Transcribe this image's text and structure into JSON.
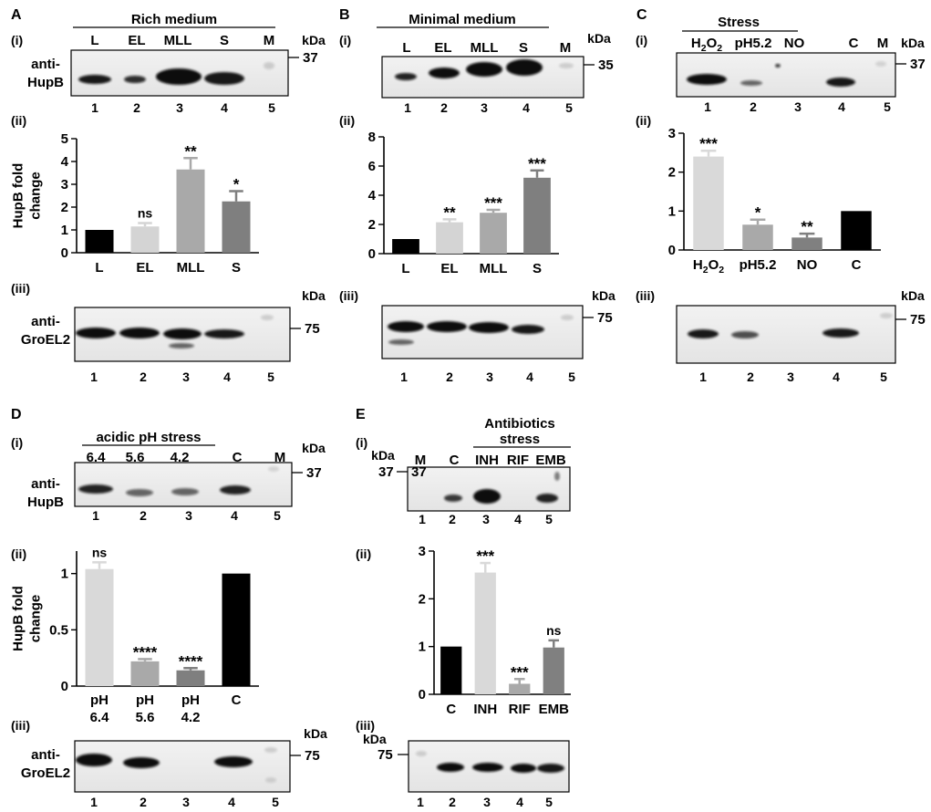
{
  "panels": {
    "A": {
      "letter": "A",
      "i": "(i)",
      "ii": "(ii)",
      "iii": "(iii)",
      "condition": "Rich medium",
      "kda": "kDa",
      "blot1": {
        "antibody": [
          "anti-",
          "HupB"
        ],
        "marker": "37",
        "lanes": [
          "L",
          "EL",
          "MLL",
          "S",
          "M"
        ],
        "numbers": [
          "1",
          "2",
          "3",
          "4",
          "5"
        ]
      },
      "blot2": {
        "antibody": [
          "anti-",
          "GroEL2"
        ],
        "marker": "75",
        "numbers": [
          "1",
          "2",
          "3",
          "4",
          "5"
        ]
      }
    },
    "B": {
      "letter": "B",
      "i": "(i)",
      "ii": "(ii)",
      "iii": "(iii)",
      "condition": "Minimal medium",
      "kda": "kDa",
      "blot1": {
        "marker": "35",
        "lanes": [
          "L",
          "EL",
          "MLL",
          "S",
          "M"
        ],
        "numbers": [
          "1",
          "2",
          "3",
          "4",
          "5"
        ]
      },
      "blot2": {
        "marker": "75",
        "numbers": [
          "1",
          "2",
          "3",
          "4",
          "5"
        ]
      }
    },
    "C": {
      "letter": "C",
      "i": "(i)",
      "ii": "(ii)",
      "iii": "(iii)",
      "condition": "Stress",
      "kda": "kDa",
      "blot1": {
        "marker": "37",
        "lanes": [
          "H2O2",
          "pH5.2",
          "NO",
          "C",
          "M"
        ],
        "numbers": [
          "1",
          "2",
          "3",
          "4",
          "5"
        ]
      },
      "blot2": {
        "marker": "75",
        "numbers": [
          "1",
          "2",
          "3",
          "4",
          "5"
        ]
      }
    },
    "D": {
      "letter": "D",
      "i": "(i)",
      "ii": "(ii)",
      "iii": "(iii)",
      "condition": "acidic pH stress",
      "kda": "kDa",
      "blot1": {
        "antibody": [
          "anti-",
          "HupB"
        ],
        "marker": "37",
        "lanes": [
          "6.4",
          "5.6",
          "4.2",
          "C",
          "M"
        ],
        "numbers": [
          "1",
          "2",
          "3",
          "4",
          "5"
        ]
      },
      "blot2": {
        "antibody": [
          "anti-",
          "GroEL2"
        ],
        "marker": "75",
        "numbers": [
          "1",
          "2",
          "3",
          "4",
          "5"
        ]
      }
    },
    "E": {
      "letter": "E",
      "i": "(i)",
      "ii": "(ii)",
      "iii": "(iii)",
      "condition": [
        "Antibiotics",
        "stress"
      ],
      "kda": "kDa",
      "blot1": {
        "marker": "37",
        "lanes": [
          "M",
          "C",
          "INH",
          "RIF",
          "EMB"
        ],
        "numbers": [
          "1",
          "2",
          "3",
          "4",
          "5"
        ]
      },
      "blot2": {
        "marker": "75",
        "numbers": [
          "1",
          "2",
          "3",
          "4",
          "5"
        ]
      }
    }
  },
  "chart_data": [
    {
      "panel": "A(ii)",
      "type": "bar",
      "categories": [
        "L",
        "EL",
        "MLL",
        "S"
      ],
      "values": [
        1.0,
        1.15,
        3.65,
        2.25
      ],
      "errors": [
        0,
        0.15,
        0.5,
        0.45
      ],
      "significance": [
        "",
        "ns",
        "**",
        "*"
      ],
      "colors": [
        "#000000",
        "#d4d4d4",
        "#a9a9a9",
        "#7f7f7f"
      ],
      "ylabel": [
        "HupB fold",
        "change"
      ],
      "ylim": [
        0,
        5
      ],
      "yticks": [
        0,
        1,
        2,
        3,
        4,
        5
      ]
    },
    {
      "panel": "B(ii)",
      "type": "bar",
      "categories": [
        "L",
        "EL",
        "MLL",
        "S"
      ],
      "values": [
        1.0,
        2.15,
        2.8,
        5.2
      ],
      "errors": [
        0,
        0.2,
        0.2,
        0.5
      ],
      "significance": [
        "",
        "**",
        "***",
        "***"
      ],
      "colors": [
        "#000000",
        "#d4d4d4",
        "#a9a9a9",
        "#7f7f7f"
      ],
      "ylabel": "",
      "ylim": [
        0,
        8
      ],
      "yticks": [
        0,
        2,
        4,
        6,
        8
      ]
    },
    {
      "panel": "C(ii)",
      "type": "bar",
      "categories": [
        "H2O2",
        "pH5.2",
        "NO",
        "C"
      ],
      "values": [
        2.4,
        0.65,
        0.32,
        1.0
      ],
      "errors": [
        0.15,
        0.13,
        0.1,
        0
      ],
      "significance": [
        "***",
        "*",
        "**",
        ""
      ],
      "colors": [
        "#d9d9d9",
        "#a9a9a9",
        "#808080",
        "#000000"
      ],
      "ylabel": "",
      "ylim": [
        0,
        3
      ],
      "yticks": [
        0,
        1,
        2,
        3
      ]
    },
    {
      "panel": "D(ii)",
      "type": "bar",
      "categories": [
        [
          "pH",
          "6.4"
        ],
        [
          "pH",
          "5.6"
        ],
        [
          "pH",
          "4.2"
        ],
        [
          "C"
        ]
      ],
      "values": [
        1.04,
        0.22,
        0.14,
        1.0
      ],
      "errors": [
        0.06,
        0.02,
        0.02,
        0
      ],
      "significance": [
        "ns",
        "****",
        "****",
        ""
      ],
      "colors": [
        "#d9d9d9",
        "#a9a9a9",
        "#7f7f7f",
        "#000000"
      ],
      "ylabel": [
        "HupB fold",
        "change"
      ],
      "ylim": [
        0,
        1.2
      ],
      "yticks": [
        0,
        0.5,
        1
      ],
      "ytick_labels": [
        "0",
        "0.5",
        "1"
      ]
    },
    {
      "panel": "E(ii)",
      "type": "bar",
      "categories": [
        "C",
        "INH",
        "RIF",
        "EMB"
      ],
      "values": [
        1.0,
        2.55,
        0.22,
        0.98
      ],
      "errors": [
        0,
        0.2,
        0.1,
        0.15
      ],
      "significance": [
        "",
        "***",
        "***",
        "ns"
      ],
      "colors": [
        "#000000",
        "#d9d9d9",
        "#a9a9a9",
        "#808080"
      ],
      "ylabel": "",
      "ylim": [
        0,
        3
      ],
      "yticks": [
        0,
        1,
        2,
        3
      ]
    }
  ]
}
